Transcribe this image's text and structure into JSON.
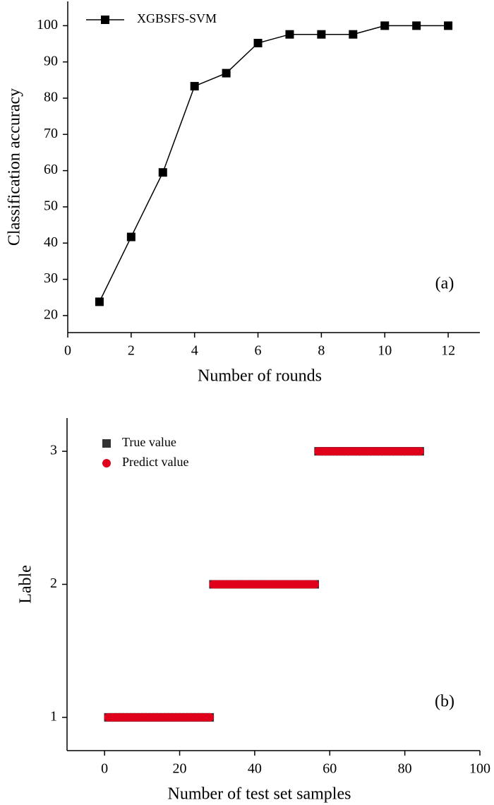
{
  "chart_data": [
    {
      "type": "line",
      "x_label": "Number of rounds",
      "y_label": "Classification accuracy",
      "annotation": "(a)",
      "x": [
        1,
        2,
        3,
        4,
        5,
        6,
        7,
        8,
        9,
        10,
        11,
        12
      ],
      "series": [
        {
          "name": "XGBSFS-SVM",
          "color": "#000000",
          "marker": "square",
          "values": [
            23.8,
            41.7,
            59.5,
            83.3,
            86.9,
            95.2,
            97.6,
            97.6,
            97.6,
            100,
            100,
            100
          ]
        }
      ],
      "xlim": [
        0,
        13
      ],
      "xticks": [
        0,
        2,
        4,
        6,
        8,
        10,
        12
      ],
      "ylim": [
        15.3,
        106.7
      ],
      "yticks": [
        20,
        30,
        40,
        50,
        60,
        70,
        80,
        90,
        100
      ],
      "legend": "upper left"
    },
    {
      "type": "scatter",
      "x_label": "Number of test set samples",
      "y_label": "Lable",
      "annotation": "(b)",
      "x": [
        1,
        2,
        3,
        4,
        5,
        6,
        7,
        8,
        9,
        10,
        11,
        12,
        13,
        14,
        15,
        16,
        17,
        18,
        19,
        20,
        21,
        22,
        23,
        24,
        25,
        26,
        27,
        28,
        29,
        30,
        31,
        32,
        33,
        34,
        35,
        36,
        37,
        38,
        39,
        40,
        41,
        42,
        43,
        44,
        45,
        46,
        47,
        48,
        49,
        50,
        51,
        52,
        53,
        54,
        55,
        56,
        57,
        58,
        59,
        60,
        61,
        62,
        63,
        64,
        65,
        66,
        67,
        68,
        69,
        70,
        71,
        72,
        73,
        74,
        75,
        76,
        77,
        78,
        79,
        80,
        81,
        82,
        83,
        84
      ],
      "series": [
        {
          "name": "True value",
          "color": "#333333",
          "marker": "square",
          "values": [
            1,
            1,
            1,
            1,
            1,
            1,
            1,
            1,
            1,
            1,
            1,
            1,
            1,
            1,
            1,
            1,
            1,
            1,
            1,
            1,
            1,
            1,
            1,
            1,
            1,
            1,
            1,
            1,
            2,
            2,
            2,
            2,
            2,
            2,
            2,
            2,
            2,
            2,
            2,
            2,
            2,
            2,
            2,
            2,
            2,
            2,
            2,
            2,
            2,
            2,
            2,
            2,
            2,
            2,
            2,
            2,
            3,
            3,
            3,
            3,
            3,
            3,
            3,
            3,
            3,
            3,
            3,
            3,
            3,
            3,
            3,
            3,
            3,
            3,
            3,
            3,
            3,
            3,
            3,
            3,
            3,
            3,
            3,
            3
          ]
        },
        {
          "name": "Predict value",
          "color": "#e0001b",
          "marker": "circle",
          "values": [
            1,
            1,
            1,
            1,
            1,
            1,
            1,
            1,
            1,
            1,
            1,
            1,
            1,
            1,
            1,
            1,
            1,
            1,
            1,
            1,
            1,
            1,
            1,
            1,
            1,
            1,
            1,
            1,
            2,
            2,
            2,
            2,
            2,
            2,
            2,
            2,
            2,
            2,
            2,
            2,
            2,
            2,
            2,
            2,
            2,
            2,
            2,
            2,
            2,
            2,
            2,
            2,
            2,
            2,
            2,
            2,
            3,
            3,
            3,
            3,
            3,
            3,
            3,
            3,
            3,
            3,
            3,
            3,
            3,
            3,
            3,
            3,
            3,
            3,
            3,
            3,
            3,
            3,
            3,
            3,
            3,
            3,
            3,
            3
          ]
        }
      ],
      "xlim": [
        -10,
        100
      ],
      "xticks": [
        0,
        20,
        40,
        60,
        80,
        100
      ],
      "ylim": [
        0.75,
        3.25
      ],
      "yticks": [
        1,
        2,
        3
      ],
      "legend": "upper left"
    }
  ]
}
